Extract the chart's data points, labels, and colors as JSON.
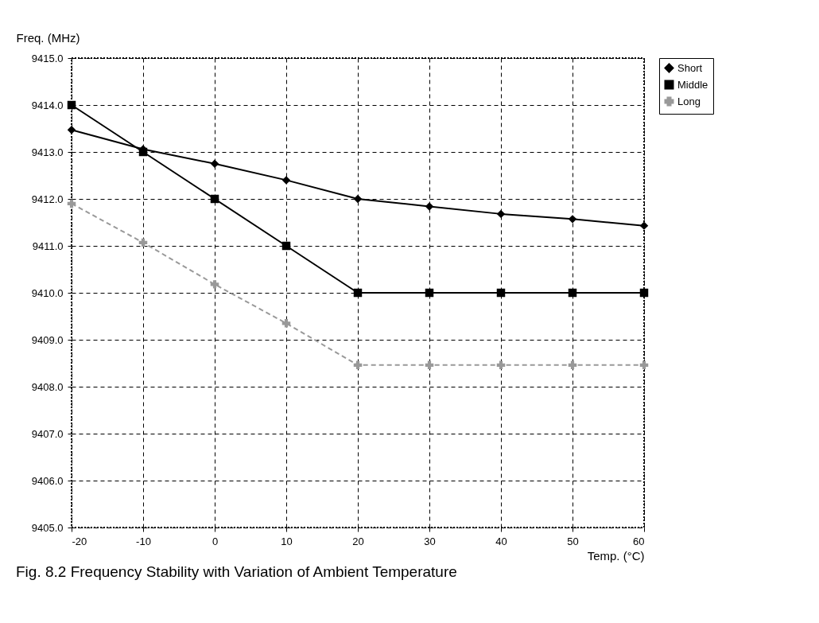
{
  "chart_data": {
    "type": "line",
    "title": "Fig. 8.2  Frequency Stability with Variation of Ambient Temperature",
    "xlabel": "Temp. (°C)",
    "ylabel": "Freq. (MHz)",
    "x": [
      -20,
      -10,
      0,
      10,
      20,
      30,
      40,
      50,
      60
    ],
    "series": [
      {
        "name": "Short",
        "color": "#000000",
        "marker": "diamond",
        "line_style": "solid",
        "values": [
          9413.47,
          9413.06,
          9412.75,
          9412.4,
          9412.0,
          9411.84,
          9411.68,
          9411.57,
          9411.43
        ]
      },
      {
        "name": "Middle",
        "color": "#000000",
        "marker": "square",
        "line_style": "solid",
        "values": [
          9414.0,
          9413.0,
          9412.0,
          9411.0,
          9410.0,
          9410.0,
          9410.0,
          9410.0,
          9410.0
        ]
      },
      {
        "name": "Long",
        "color": "#999999",
        "marker": "cross",
        "line_style": "dashed",
        "values": [
          9411.9,
          9411.07,
          9410.18,
          9409.35,
          9408.46,
          9408.46,
          9408.46,
          9408.46,
          9408.46
        ]
      }
    ],
    "xlim": [
      -20,
      60
    ],
    "xticks": [
      -20,
      -10,
      0,
      10,
      20,
      30,
      40,
      50,
      60
    ],
    "ylim": [
      9405,
      9415
    ],
    "yticks": [
      {
        "value": 9405,
        "label": "9405.0"
      },
      {
        "value": 9406,
        "label": "9406.0"
      },
      {
        "value": 9407,
        "label": "9407.0"
      },
      {
        "value": 9408,
        "label": "9408.0"
      },
      {
        "value": 9409,
        "label": "9409.0"
      },
      {
        "value": 9410,
        "label": "9410.0"
      },
      {
        "value": 9411,
        "label": "9411.0"
      },
      {
        "value": 9412,
        "label": "9412.0"
      },
      {
        "value": 9413,
        "label": "9413.0"
      },
      {
        "value": 9414,
        "label": "9414.0"
      },
      {
        "value": 9415,
        "label": "9415.0"
      }
    ],
    "grid": true,
    "legend": "right"
  }
}
